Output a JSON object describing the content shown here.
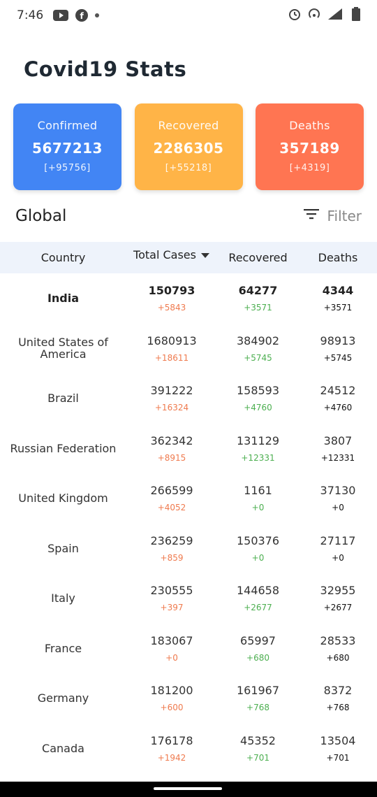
{
  "status_bar": {
    "time": "7:46",
    "left_icons": [
      "youtube-icon",
      "facebook-icon",
      "dot-icon"
    ],
    "right_icons": [
      "alarm-icon",
      "hotspot-icon",
      "signal-icon",
      "battery-icon"
    ]
  },
  "app": {
    "title": "Covid19 Stats"
  },
  "cards": [
    {
      "label": "Confirmed",
      "value": "5677213",
      "delta": "[+95756]",
      "color": "#4285f4"
    },
    {
      "label": "Recovered",
      "value": "2286305",
      "delta": "[+55218]",
      "color": "#ffb447"
    },
    {
      "label": "Deaths",
      "value": "357189",
      "delta": "[+4319]",
      "color": "#ff7552"
    }
  ],
  "section": {
    "title": "Global",
    "filter_label": "Filter"
  },
  "table": {
    "headers": {
      "country": "Country",
      "total": "Total Cases",
      "recovered": "Recovered",
      "deaths": "Deaths"
    },
    "rows": [
      {
        "country": "India",
        "total": "150793",
        "total_delta": "+5843",
        "recovered": "64277",
        "recovered_delta": "+3571",
        "deaths": "4344",
        "deaths_delta": "+3571"
      },
      {
        "country": "United States of America",
        "total": "1680913",
        "total_delta": "+18611",
        "recovered": "384902",
        "recovered_delta": "+5745",
        "deaths": "98913",
        "deaths_delta": "+5745"
      },
      {
        "country": "Brazil",
        "total": "391222",
        "total_delta": "+16324",
        "recovered": "158593",
        "recovered_delta": "+4760",
        "deaths": "24512",
        "deaths_delta": "+4760"
      },
      {
        "country": "Russian Federation",
        "total": "362342",
        "total_delta": "+8915",
        "recovered": "131129",
        "recovered_delta": "+12331",
        "deaths": "3807",
        "deaths_delta": "+12331"
      },
      {
        "country": "United Kingdom",
        "total": "266599",
        "total_delta": "+4052",
        "recovered": "1161",
        "recovered_delta": "+0",
        "deaths": "37130",
        "deaths_delta": "+0"
      },
      {
        "country": "Spain",
        "total": "236259",
        "total_delta": "+859",
        "recovered": "150376",
        "recovered_delta": "+0",
        "deaths": "27117",
        "deaths_delta": "+0"
      },
      {
        "country": "Italy",
        "total": "230555",
        "total_delta": "+397",
        "recovered": "144658",
        "recovered_delta": "+2677",
        "deaths": "32955",
        "deaths_delta": "+2677"
      },
      {
        "country": "France",
        "total": "183067",
        "total_delta": "+0",
        "recovered": "65997",
        "recovered_delta": "+680",
        "deaths": "28533",
        "deaths_delta": "+680"
      },
      {
        "country": "Germany",
        "total": "181200",
        "total_delta": "+600",
        "recovered": "161967",
        "recovered_delta": "+768",
        "deaths": "8372",
        "deaths_delta": "+768"
      },
      {
        "country": "Canada",
        "total": "176178",
        "total_delta": "+1942",
        "recovered": "45352",
        "recovered_delta": "+701",
        "deaths": "13504",
        "deaths_delta": "+701"
      }
    ]
  },
  "colors": {
    "delta_total": "#ef7a4e",
    "delta_recovered": "#4caf50",
    "delta_deaths": "#111111",
    "header_bg": "#eef3fb"
  }
}
